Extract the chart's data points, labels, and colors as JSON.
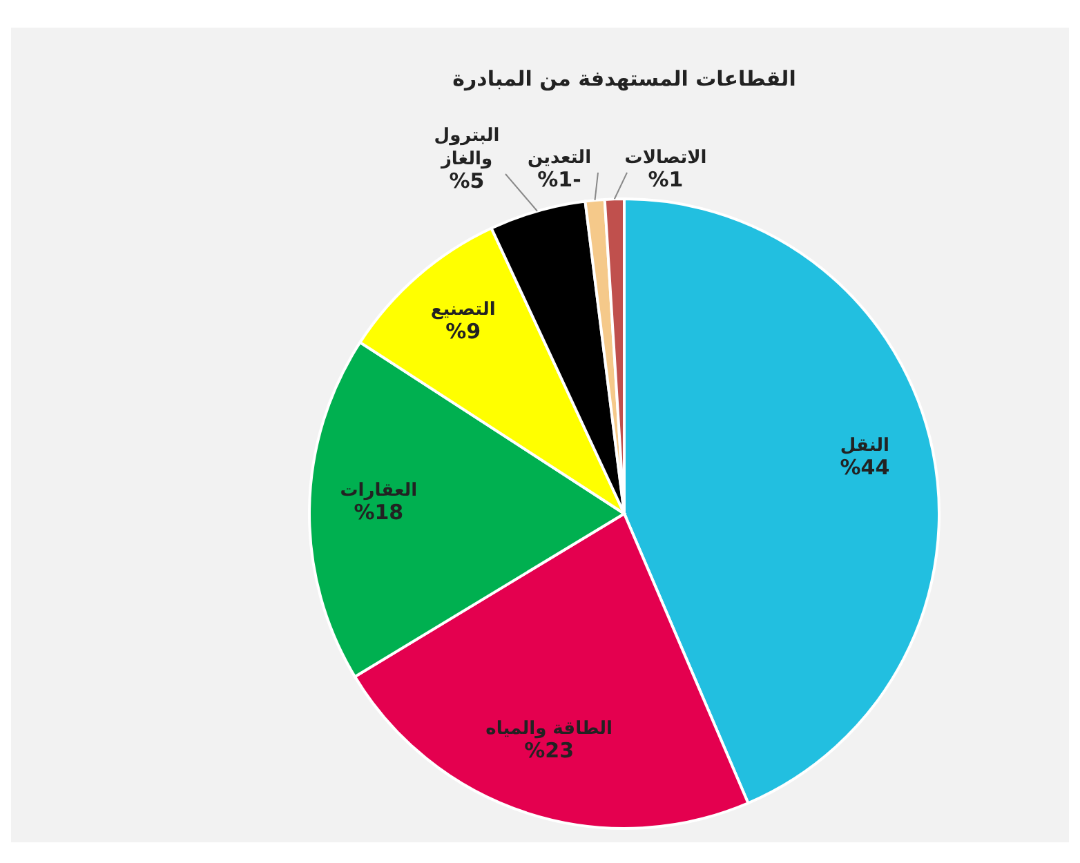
{
  "chart_data": {
    "type": "pie",
    "title": "القطاعات المستهدفة من المبادرة",
    "categories": [
      "النقل",
      "الطاقة والمياه",
      "العقارات",
      "التصنيع",
      "البترول والغاز",
      "التعدين",
      "الاتصالات"
    ],
    "values": [
      44,
      23,
      18,
      9,
      5,
      1,
      1
    ],
    "value_labels": [
      "%44",
      "%23",
      "%18",
      "%9",
      "%5",
      "%1-",
      "%1"
    ],
    "colors": [
      "#22bfe0",
      "#e4004f",
      "#00b050",
      "#ffff00",
      "#000000",
      "#f5c98a",
      "#c0504d"
    ]
  }
}
